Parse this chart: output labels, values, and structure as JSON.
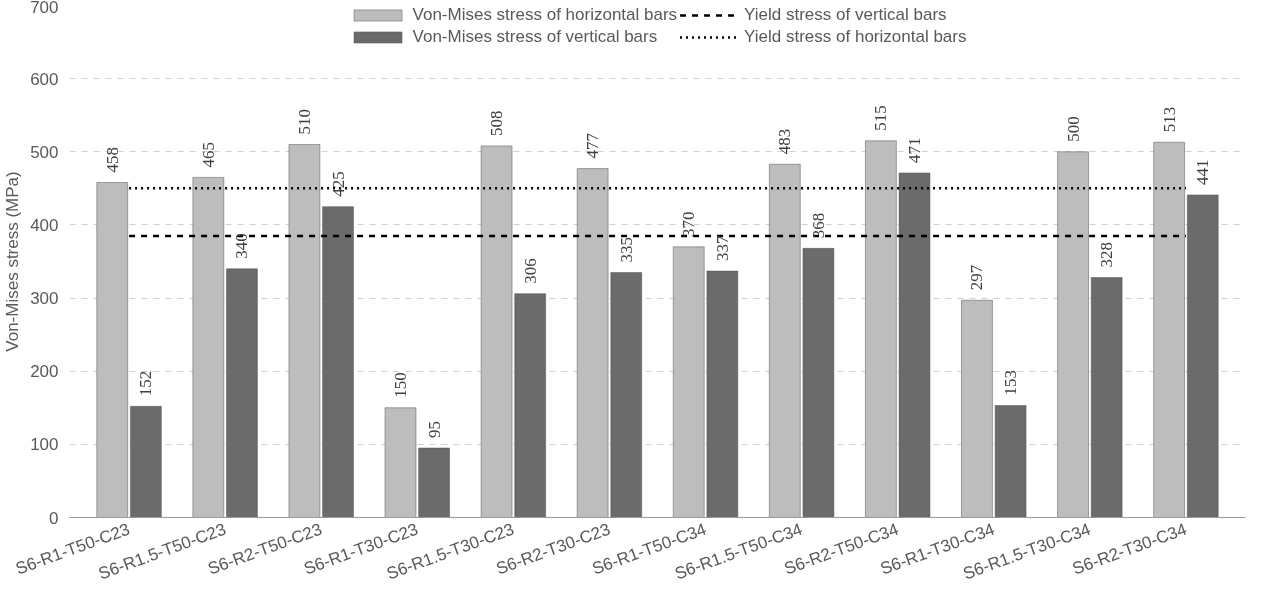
{
  "chart_data": {
    "type": "bar",
    "ylabel": "Von-Mises stress (MPa)",
    "categories": [
      "S6-R1-T50-C23",
      "S6-R1.5-T50-C23",
      "S6-R2-T50-C23",
      "S6-R1-T30-C23",
      "S6-R1.5-T30-C23",
      "S6-R2-T30-C23",
      "S6-R1-T50-C34",
      "S6-R1.5-T50-C34",
      "S6-R2-T50-C34",
      "S6-R1-T30-C34",
      "S6-R1.5-T30-C34",
      "S6-R2-T30-C34"
    ],
    "series": [
      {
        "name": "Von-Mises stress of horizontal bars",
        "color": "#bdbdbd",
        "values": [
          458,
          465,
          510,
          150,
          508,
          477,
          370,
          483,
          515,
          297,
          500,
          513
        ]
      },
      {
        "name": "Von-Mises stress of vertical bars",
        "color": "#6b6b6b",
        "values": [
          152,
          340,
          425,
          95,
          306,
          335,
          337,
          368,
          471,
          153,
          328,
          441
        ]
      }
    ],
    "ref_lines": [
      {
        "axis": "y",
        "value": 385,
        "label": "Yield stress of vertical bars",
        "color": "#000000",
        "line_style": "dashed"
      },
      {
        "axis": "y",
        "value": 450,
        "label": "Yield stress of horizontal bars",
        "color": "#000000",
        "line_style": "dotted"
      }
    ],
    "ylim": [
      0,
      700
    ],
    "yticks": [
      0,
      100,
      200,
      300,
      400,
      500,
      600,
      700
    ],
    "grid": "y",
    "legend": "top",
    "data_labels": true
  }
}
